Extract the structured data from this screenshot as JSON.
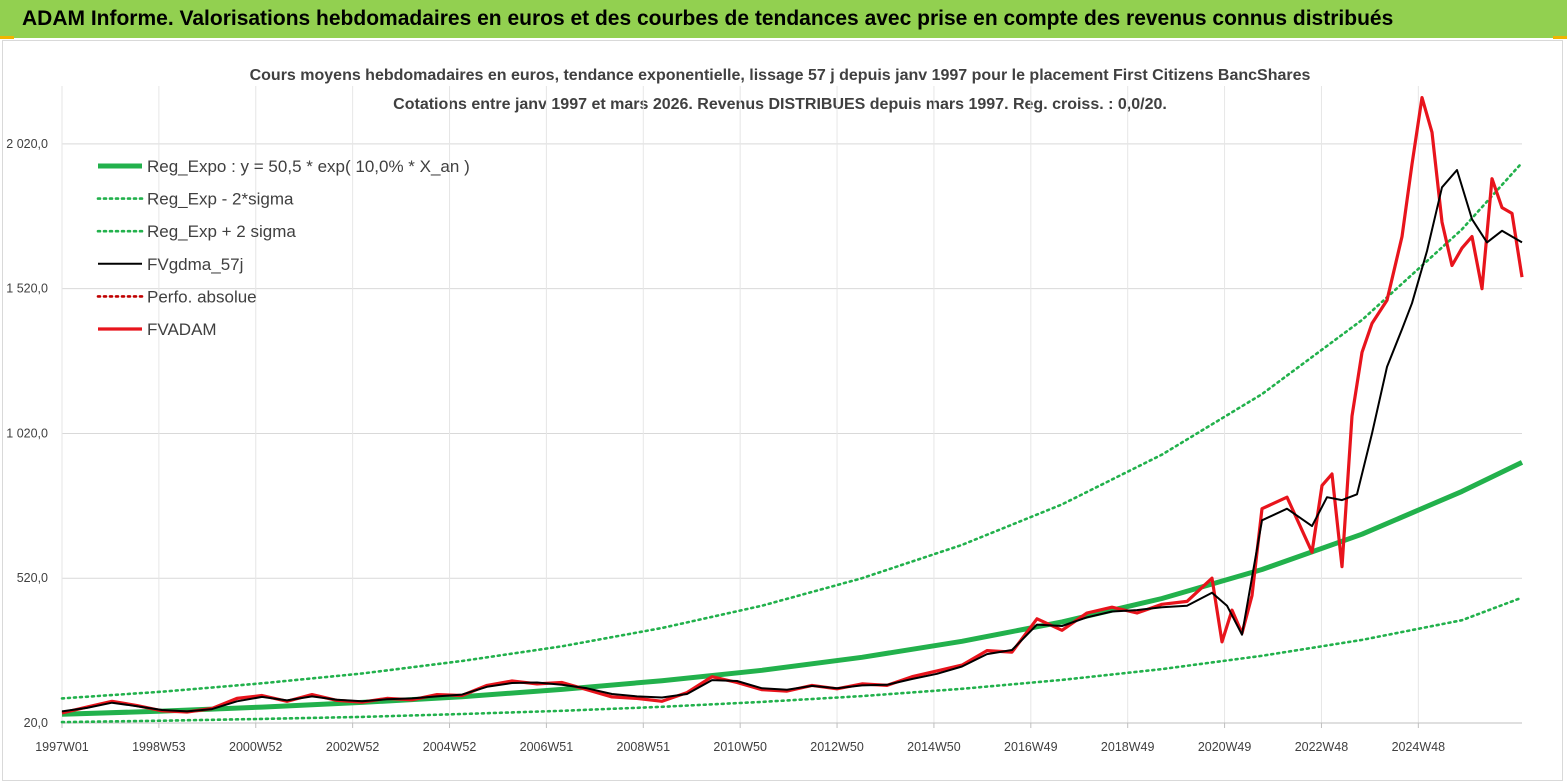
{
  "header": {
    "title": "ADAM Informe. Valorisations hebdomadaires en euros et des courbes de tendances avec prise en compte des revenus connus distribués"
  },
  "chart_data": {
    "type": "line",
    "title": "Cours moyens hebdomadaires en euros, tendance exponentielle, lissage 57 j depuis janv 1997 pour le placement First Citizens BancShares",
    "subtitle": "Cotations entre janv 1997 et mars 2026. Revenus DISTRIBUES depuis mars 1997. Reg. croiss. : 0,0/20.",
    "xlabel": "",
    "ylabel": "",
    "x_ticks": [
      "1997W01",
      "1998W53",
      "2000W52",
      "2002W52",
      "2004W52",
      "2006W51",
      "2008W51",
      "2010W50",
      "2012W50",
      "2014W50",
      "2016W49",
      "2018W49",
      "2020W49",
      "2022W48",
      "2024W48"
    ],
    "x_range": [
      1997.0,
      2026.2
    ],
    "y_ticks": [
      "20,0",
      "520,0",
      "1 020,0",
      "1 520,0",
      "2 020,0"
    ],
    "y_tick_values": [
      20,
      520,
      1020,
      1520,
      2020
    ],
    "ylim": [
      20,
      2220
    ],
    "grid": true,
    "legend_position": "top-left",
    "series": [
      {
        "name": "Reg_Expo : y = 50,5 * exp( 10,0% *  X_an )",
        "style": "solid-thick",
        "color": "#22b14c",
        "x": [
          1997,
          1999,
          2001,
          2003,
          2005,
          2007,
          2009,
          2011,
          2013,
          2015,
          2017,
          2019,
          2021,
          2023,
          2025,
          2026.2
        ],
        "y": [
          50,
          61,
          75,
          91,
          111,
          136,
          166,
          202,
          247,
          302,
          369,
          450,
          550,
          672,
          820,
          920
        ]
      },
      {
        "name": "Reg_Exp - 2*sigma",
        "style": "dotted",
        "color": "#22b14c",
        "x": [
          1997,
          1999,
          2001,
          2003,
          2005,
          2007,
          2009,
          2011,
          2013,
          2015,
          2017,
          2019,
          2021,
          2023,
          2025,
          2026.2
        ],
        "y": [
          23,
          28,
          34,
          41,
          51,
          62,
          76,
          93,
          113,
          138,
          169,
          206,
          252,
          307,
          375,
          453
        ]
      },
      {
        "name": "Reg_Exp + 2 sigma",
        "style": "dotted",
        "color": "#22b14c",
        "x": [
          1997,
          1999,
          2001,
          2003,
          2005,
          2007,
          2009,
          2011,
          2013,
          2015,
          2017,
          2019,
          2021,
          2023,
          2025,
          2026.2
        ],
        "y": [
          105,
          128,
          157,
          191,
          234,
          285,
          348,
          425,
          520,
          635,
          775,
          947,
          1156,
          1412,
          1725,
          1955
        ]
      },
      {
        "name": "FVgdma_57j",
        "style": "solid",
        "color": "#000000",
        "x": [
          1997,
          1997.5,
          1998,
          1998.5,
          1999,
          1999.5,
          2000,
          2000.5,
          2001,
          2001.5,
          2002,
          2002.5,
          2003,
          2003.5,
          2004,
          2004.5,
          2005,
          2005.5,
          2006,
          2006.5,
          2007,
          2007.5,
          2008,
          2008.5,
          2009,
          2009.5,
          2010,
          2010.5,
          2011,
          2011.5,
          2012,
          2012.5,
          2013,
          2013.5,
          2014,
          2014.5,
          2015,
          2015.5,
          2016,
          2016.5,
          2017,
          2017.5,
          2018,
          2018.5,
          2019,
          2019.5,
          2020,
          2020.3,
          2020.6,
          2021,
          2021.5,
          2022,
          2022.3,
          2022.6,
          2022.9,
          2023.2,
          2023.5,
          2023.8,
          2024,
          2024.3,
          2024.6,
          2024.9,
          2025.2,
          2025.5,
          2025.8,
          2026.2
        ],
        "y": [
          60,
          72,
          90,
          78,
          65,
          60,
          68,
          95,
          110,
          98,
          112,
          100,
          95,
          102,
          105,
          112,
          118,
          145,
          158,
          160,
          152,
          140,
          120,
          112,
          108,
          120,
          168,
          165,
          140,
          135,
          148,
          140,
          150,
          152,
          172,
          190,
          215,
          258,
          272,
          360,
          355,
          385,
          405,
          410,
          420,
          425,
          470,
          425,
          325,
          720,
          760,
          700,
          800,
          790,
          810,
          1020,
          1250,
          1380,
          1470,
          1650,
          1870,
          1930,
          1760,
          1680,
          1720,
          1680
        ]
      },
      {
        "name": "Perfo. absolue",
        "style": "dotted",
        "color": "#c00000",
        "x": [],
        "y": []
      },
      {
        "name": "FVADAM",
        "style": "solid-thick",
        "color": "#e8141c",
        "x": [
          1997,
          1997.5,
          1998,
          1998.5,
          1999,
          1999.5,
          2000,
          2000.5,
          2001,
          2001.5,
          2002,
          2002.5,
          2003,
          2003.5,
          2004,
          2004.5,
          2005,
          2005.5,
          2006,
          2006.5,
          2007,
          2007.5,
          2008,
          2008.5,
          2009,
          2009.5,
          2010,
          2010.5,
          2011,
          2011.5,
          2012,
          2012.5,
          2013,
          2013.5,
          2014,
          2014.5,
          2015,
          2015.5,
          2016,
          2016.5,
          2017,
          2017.5,
          2018,
          2018.5,
          2019,
          2019.5,
          2020,
          2020.2,
          2020.4,
          2020.6,
          2020.8,
          2021,
          2021.5,
          2022,
          2022.2,
          2022.4,
          2022.6,
          2022.8,
          2023,
          2023.2,
          2023.5,
          2023.8,
          2024,
          2024.2,
          2024.4,
          2024.6,
          2024.8,
          2025,
          2025.2,
          2025.4,
          2025.6,
          2025.8,
          2026,
          2026.2
        ],
        "y": [
          55,
          75,
          95,
          80,
          62,
          58,
          70,
          105,
          115,
          95,
          118,
          98,
          92,
          105,
          100,
          118,
          115,
          150,
          165,
          155,
          160,
          135,
          110,
          105,
          95,
          125,
          180,
          160,
          135,
          130,
          150,
          138,
          155,
          150,
          180,
          200,
          220,
          270,
          265,
          380,
          340,
          400,
          420,
          400,
          430,
          440,
          520,
          300,
          410,
          330,
          460,
          760,
          800,
          610,
          840,
          880,
          560,
          1080,
          1300,
          1400,
          1480,
          1700,
          1950,
          2180,
          2060,
          1750,
          1600,
          1660,
          1700,
          1520,
          1900,
          1800,
          1780,
          1560
        ]
      }
    ]
  }
}
